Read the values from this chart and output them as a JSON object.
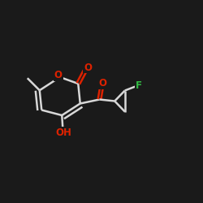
{
  "background_color": "#1a1a1a",
  "line_color": "#d8d8d8",
  "atom_colors": {
    "O": "#dd2200",
    "F": "#33bb44",
    "C": "#d8d8d8"
  },
  "figsize": [
    2.5,
    2.5
  ],
  "dpi": 100
}
